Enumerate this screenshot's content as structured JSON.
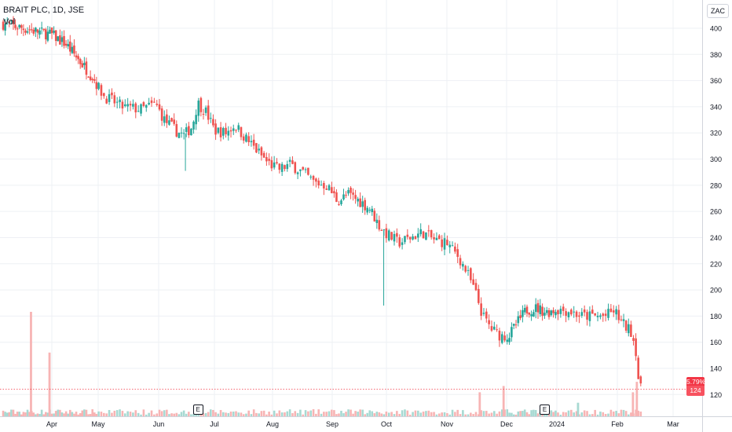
{
  "header": {
    "symbol": "BRAIT PLC, 1D, JSE",
    "volume_label": "Vol",
    "currency": "ZAC"
  },
  "tags": {
    "change_pct": "5.79%",
    "price": "124"
  },
  "events": [
    {
      "label": "E",
      "month_index": 2.7
    },
    {
      "label": "E",
      "month_index": 8.75
    }
  ],
  "colors": {
    "up": "#26a69a",
    "down": "#ef5350",
    "up_volume": "#a7d9d2",
    "down_volume": "#f7b4b4",
    "grid": "#eef0f4",
    "axis_text": "#131722",
    "price_line": "#f23645"
  },
  "chart_data": {
    "type": "candlestick",
    "symbol": "BRAIT PLC",
    "interval": "1D",
    "exchange": "JSE",
    "y_axis": {
      "ticks": [
        120,
        140,
        160,
        180,
        200,
        220,
        240,
        260,
        280,
        300,
        320,
        340,
        360,
        380,
        400
      ],
      "range": [
        112,
        412
      ]
    },
    "x_axis": {
      "ticks": [
        "Apr",
        "May",
        "Jun",
        "Jul",
        "Aug",
        "Sep",
        "Oct",
        "Nov",
        "Dec",
        "2024",
        "Feb",
        "Mar"
      ]
    },
    "close_path": [
      {
        "m": 0.0,
        "c": 395
      },
      {
        "m": 0.3,
        "c": 388
      },
      {
        "m": 0.6,
        "c": 375
      },
      {
        "m": 0.9,
        "c": 362
      },
      {
        "m": 1.1,
        "c": 348
      },
      {
        "m": 1.4,
        "c": 340
      },
      {
        "m": 1.7,
        "c": 338
      },
      {
        "m": 1.95,
        "c": 342
      },
      {
        "m": 2.1,
        "c": 330
      },
      {
        "m": 2.3,
        "c": 322
      },
      {
        "m": 2.45,
        "c": 318
      },
      {
        "m": 2.6,
        "c": 325
      },
      {
        "m": 2.7,
        "c": 343
      },
      {
        "m": 2.85,
        "c": 336
      },
      {
        "m": 3.0,
        "c": 322
      },
      {
        "m": 3.2,
        "c": 320
      },
      {
        "m": 3.35,
        "c": 326
      },
      {
        "m": 3.5,
        "c": 318
      },
      {
        "m": 3.7,
        "c": 308
      },
      {
        "m": 3.9,
        "c": 298
      },
      {
        "m": 4.1,
        "c": 292
      },
      {
        "m": 4.3,
        "c": 296
      },
      {
        "m": 4.5,
        "c": 290
      },
      {
        "m": 4.7,
        "c": 282
      },
      {
        "m": 4.9,
        "c": 280
      },
      {
        "m": 5.1,
        "c": 268
      },
      {
        "m": 5.3,
        "c": 273
      },
      {
        "m": 5.5,
        "c": 268
      },
      {
        "m": 5.7,
        "c": 262
      },
      {
        "m": 5.85,
        "c": 250
      },
      {
        "m": 6.0,
        "c": 243
      },
      {
        "m": 6.2,
        "c": 236
      },
      {
        "m": 6.4,
        "c": 240
      },
      {
        "m": 6.6,
        "c": 244
      },
      {
        "m": 6.8,
        "c": 238
      },
      {
        "m": 7.0,
        "c": 236
      },
      {
        "m": 7.1,
        "c": 230
      },
      {
        "m": 7.2,
        "c": 225
      },
      {
        "m": 7.35,
        "c": 212
      },
      {
        "m": 7.5,
        "c": 195
      },
      {
        "m": 7.6,
        "c": 180
      },
      {
        "m": 7.75,
        "c": 170
      },
      {
        "m": 7.9,
        "c": 165
      },
      {
        "m": 8.05,
        "c": 165
      },
      {
        "m": 8.2,
        "c": 174
      },
      {
        "m": 8.4,
        "c": 185
      },
      {
        "m": 8.6,
        "c": 186
      },
      {
        "m": 8.8,
        "c": 183
      },
      {
        "m": 9.0,
        "c": 185
      },
      {
        "m": 9.2,
        "c": 184
      },
      {
        "m": 9.4,
        "c": 180
      },
      {
        "m": 9.6,
        "c": 180
      },
      {
        "m": 9.8,
        "c": 180
      },
      {
        "m": 9.95,
        "c": 184
      },
      {
        "m": 10.1,
        "c": 174
      },
      {
        "m": 10.25,
        "c": 168
      },
      {
        "m": 10.33,
        "c": 155
      },
      {
        "m": 10.38,
        "c": 131
      },
      {
        "m": 10.42,
        "c": 124
      }
    ],
    "notable_wicks": [
      {
        "m": 2.48,
        "low": 291
      },
      {
        "m": 5.95,
        "low": 188
      }
    ],
    "volume_spikes": [
      {
        "m": -0.45,
        "rel": 1.0,
        "dir": "down"
      },
      {
        "m": -0.05,
        "rel": 0.61,
        "dir": "down"
      },
      {
        "m": 7.55,
        "rel": 0.23,
        "dir": "down"
      },
      {
        "m": 7.95,
        "rel": 0.29,
        "dir": "down"
      },
      {
        "m": 9.35,
        "rel": 0.13,
        "dir": "up"
      },
      {
        "m": 10.28,
        "rel": 0.23,
        "dir": "down"
      },
      {
        "m": 10.35,
        "rel": 0.33,
        "dir": "down"
      }
    ],
    "last_price": 124,
    "change_pct": "5.79%"
  }
}
